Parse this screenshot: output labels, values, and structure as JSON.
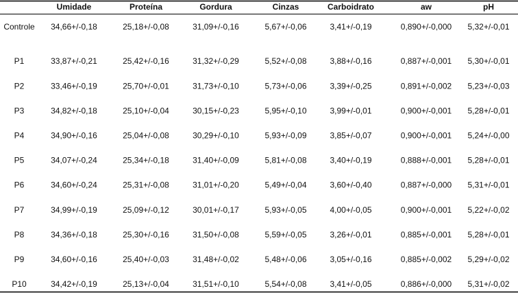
{
  "table": {
    "header": [
      "Umidade",
      "Proteína",
      "Gordura",
      "Cinzas",
      "Carboidrato",
      "aw",
      "pH"
    ],
    "rows": [
      [
        "Controle",
        "34,66+/-0,18",
        "25,18+/-0,08",
        "31,09+/-0,16",
        "5,67+/-0,06",
        "3,41+/-0,19",
        "0,890+/-0,000",
        "5,32+/-0,01"
      ],
      [
        "P1",
        "33,87+/-0,21",
        "25,42+/-0,16",
        "31,32+/-0,29",
        "5,52+/-0,08",
        "3,88+/-0,16",
        "0,887+/-0,001",
        "5,30+/-0,01"
      ],
      [
        "P2",
        "33,46+/-0,19",
        "25,70+/-0,01",
        "31,73+/-0,10",
        "5,73+/-0,06",
        "3,39+/-0,25",
        "0,891+/-0,002",
        "5,23+/-0,03"
      ],
      [
        "P3",
        "34,82+/-0,18",
        "25,10+/-0,04",
        "30,15+/-0,23",
        "5,95+/-0,10",
        "3,99+/-0,01",
        "0,900+/-0,001",
        "5,28+/-0,01"
      ],
      [
        "P4",
        "34,90+/-0,16",
        "25,04+/-0,08",
        "30,29+/-0,10",
        "5,93+/-0,09",
        "3,85+/-0,07",
        "0,900+/-0,001",
        "5,24+/-0,00"
      ],
      [
        "P5",
        "34,07+/-0,24",
        "25,34+/-0,18",
        "31,40+/-0,09",
        "5,81+/-0,08",
        "3,40+/-0,19",
        "0,888+/-0,001",
        "5,28+/-0,01"
      ],
      [
        "P6",
        "34,60+/-0,24",
        "25,31+/-0,08",
        "31,01+/-0,20",
        "5,49+/-0,04",
        "3,60+/-0,40",
        "0,887+/-0,000",
        "5,31+/-0,01"
      ],
      [
        "P7",
        "34,99+/-0,19",
        "25,09+/-0,12",
        "30,01+/-0,17",
        "5,93+/-0,05",
        "4,00+/-0,05",
        "0,900+/-0,001",
        "5,22+/-0,02"
      ],
      [
        "P8",
        "34,36+/-0,18",
        "25,30+/-0,16",
        "31,50+/-0,08",
        "5,59+/-0,05",
        "3,26+/-0,01",
        "0,885+/-0,001",
        "5,28+/-0,01"
      ],
      [
        "P9",
        "34,60+/-0,16",
        "25,40+/-0,03",
        "31,48+/-0,02",
        "5,48+/-0,06",
        "3,05+/-0,16",
        "0,885+/-0,002",
        "5,29+/-0,02"
      ],
      [
        "P10",
        "34,42+/-0,19",
        "25,13+/-0,04",
        "31,51+/-0,10",
        "5,54+/-0,08",
        "3,41+/-0,05",
        "0,886+/-0,000",
        "5,31+/-0,02"
      ]
    ]
  }
}
